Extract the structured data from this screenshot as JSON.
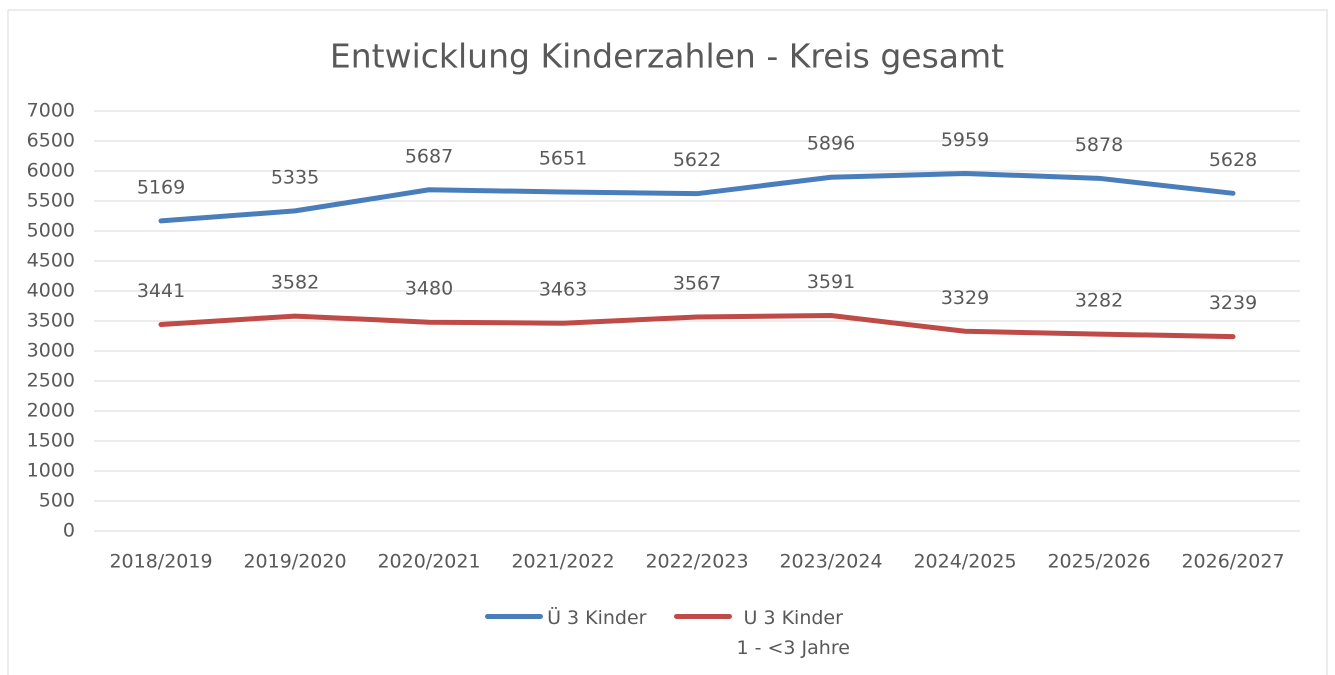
{
  "chart_data": {
    "type": "line",
    "title": "Entwicklung Kinderzahlen - Kreis gesamt",
    "categories": [
      "2018/2019",
      "2019/2020",
      "2020/2021",
      "2021/2022",
      "2022/2023",
      "2023/2024",
      "2024/2025",
      "2025/2026",
      "2026/2027"
    ],
    "series": [
      {
        "name": "Ü 3 Kinder",
        "color": "#4a7ebb",
        "values": [
          5169,
          5335,
          5687,
          5651,
          5622,
          5896,
          5959,
          5878,
          5628
        ]
      },
      {
        "name": "U 3 Kinder\n1 - <3 Jahre",
        "color": "#be4b48",
        "values": [
          3441,
          3582,
          3480,
          3463,
          3567,
          3591,
          3329,
          3282,
          3239
        ]
      }
    ],
    "ylim": [
      0,
      7000
    ],
    "yticks": [
      0,
      500,
      1000,
      1500,
      2000,
      2500,
      3000,
      3500,
      4000,
      4500,
      5000,
      5500,
      6000,
      6500,
      7000
    ],
    "grid": true,
    "legend": "bottom"
  }
}
